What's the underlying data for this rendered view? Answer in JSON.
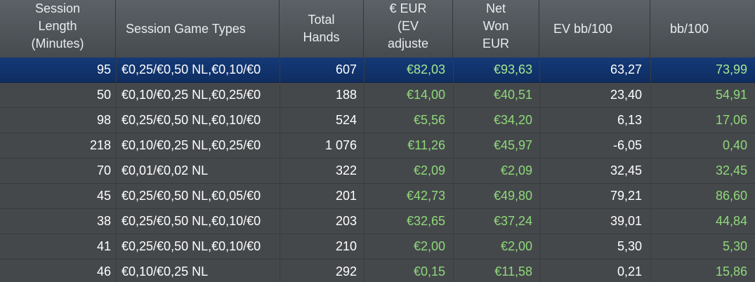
{
  "columns": [
    {
      "key": "length",
      "label": "Session\nLength\n(Minutes)"
    },
    {
      "key": "types",
      "label": "Session Game Types"
    },
    {
      "key": "hands",
      "label": "Total\nHands"
    },
    {
      "key": "ev_eur",
      "label": "€ EUR\n(EV\nadjuste"
    },
    {
      "key": "net_won",
      "label": "Net\nWon\nEUR"
    },
    {
      "key": "ev_bb",
      "label": "EV bb/100"
    },
    {
      "key": "bb",
      "label": "bb/100"
    }
  ],
  "rows": [
    {
      "length": "95",
      "types": "€0,25/€0,50 NL,€0,10/€0",
      "hands": "607",
      "ev_eur": "€82,03",
      "net_won": "€93,63",
      "ev_bb": "63,27",
      "bb": "73,99",
      "selected": true
    },
    {
      "length": "50",
      "types": "€0,10/€0,25 NL,€0,25/€0",
      "hands": "188",
      "ev_eur": "€14,00",
      "net_won": "€40,51",
      "ev_bb": "23,40",
      "bb": "54,91"
    },
    {
      "length": "98",
      "types": "€0,25/€0,50 NL,€0,10/€0",
      "hands": "524",
      "ev_eur": "€5,56",
      "net_won": "€34,20",
      "ev_bb": "6,13",
      "bb": "17,06"
    },
    {
      "length": "218",
      "types": "€0,10/€0,25 NL,€0,25/€0",
      "hands": "1 076",
      "ev_eur": "€11,26",
      "net_won": "€45,97",
      "ev_bb": "-6,05",
      "bb": "0,40"
    },
    {
      "length": "70",
      "types": "€0,01/€0,02 NL",
      "hands": "322",
      "ev_eur": "€2,09",
      "net_won": "€2,09",
      "ev_bb": "32,45",
      "bb": "32,45"
    },
    {
      "length": "45",
      "types": "€0,25/€0,50 NL,€0,05/€0",
      "hands": "201",
      "ev_eur": "€42,73",
      "net_won": "€49,80",
      "ev_bb": "79,21",
      "bb": "86,60"
    },
    {
      "length": "38",
      "types": "€0,25/€0,50 NL,€0,10/€0",
      "hands": "203",
      "ev_eur": "€32,65",
      "net_won": "€37,24",
      "ev_bb": "39,01",
      "bb": "44,84"
    },
    {
      "length": "41",
      "types": "€0,25/€0,50 NL,€0,10/€0",
      "hands": "210",
      "ev_eur": "€2,00",
      "net_won": "€2,00",
      "ev_bb": "5,30",
      "bb": "5,30"
    },
    {
      "length": "46",
      "types": "€0,10/€0,25 NL",
      "hands": "292",
      "ev_eur": "€0,15",
      "net_won": "€11,58",
      "ev_bb": "0,21",
      "bb": "15,86"
    }
  ],
  "colors": {
    "positive": "#8ed97a",
    "selected_row": "#143a78",
    "background": "#45484b"
  }
}
